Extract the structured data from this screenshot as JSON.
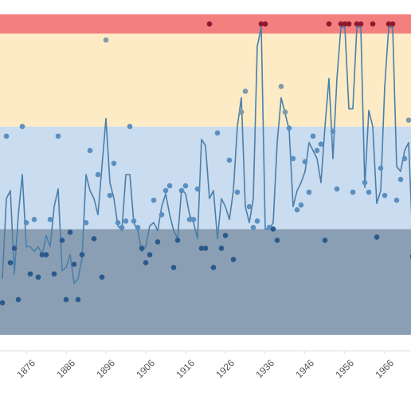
{
  "chart_data": {
    "type": "line-scatter",
    "xlim": [
      1869.4,
      1972.6
    ],
    "ylim": [
      0,
      100
    ],
    "xticks": [
      1876,
      1886,
      1896,
      1906,
      1916,
      1926,
      1936,
      1946,
      1956,
      1966
    ],
    "bands": [
      {
        "from": 0,
        "to": 33,
        "color": "#8a9fb3",
        "point_color": "#2a5a8c"
      },
      {
        "from": 33,
        "to": 65,
        "color": "#c9dcf0",
        "point_color": "#5b8fbf"
      },
      {
        "from": 65,
        "to": 94,
        "color": "#fcebc4",
        "point_color": "#7f9aa8"
      },
      {
        "from": 94,
        "to": 100,
        "color": "#f47f7f",
        "point_color": "#8b1a2e"
      }
    ],
    "x": [
      1870,
      1871,
      1872,
      1873,
      1874,
      1875,
      1876,
      1877,
      1878,
      1879,
      1880,
      1881,
      1882,
      1883,
      1884,
      1885,
      1886,
      1887,
      1888,
      1889,
      1890,
      1891,
      1892,
      1893,
      1894,
      1895,
      1896,
      1897,
      1898,
      1899,
      1900,
      1901,
      1902,
      1903,
      1904,
      1905,
      1906,
      1907,
      1908,
      1909,
      1910,
      1911,
      1912,
      1913,
      1914,
      1915,
      1916,
      1917,
      1918,
      1919,
      1920,
      1921,
      1922,
      1923,
      1924,
      1925,
      1926,
      1927,
      1928,
      1929,
      1930,
      1931,
      1932,
      1933,
      1934,
      1935,
      1936,
      1937,
      1938,
      1939,
      1940,
      1941,
      1942,
      1943,
      1944,
      1945,
      1946,
      1947,
      1948,
      1949,
      1950,
      1951,
      1952,
      1953,
      1954,
      1955,
      1956,
      1957,
      1958,
      1959,
      1960,
      1961,
      1962,
      1963,
      1964,
      1965,
      1966,
      1967,
      1968,
      1969,
      1970,
      1971,
      1972,
      1973
    ],
    "line": {
      "color": "#4a7fab",
      "values": [
        17.5,
        42.5,
        45,
        19,
        37.5,
        50,
        27.5,
        27.5,
        26,
        27.5,
        25,
        31,
        27.5,
        40,
        45.5,
        20,
        21,
        25,
        16,
        17.5,
        24,
        50,
        45,
        42.5,
        37.5,
        52.5,
        67.5,
        47.5,
        42.5,
        34,
        32.5,
        50,
        50,
        35,
        32.5,
        26,
        27.5,
        34,
        35,
        32.5,
        40,
        44,
        37.5,
        32.5,
        30,
        45.5,
        44,
        37.5,
        35,
        30,
        61,
        59,
        42.5,
        45,
        30,
        42.5,
        40,
        36,
        45,
        65,
        74,
        40,
        35,
        42.5,
        90,
        96,
        33,
        33,
        35,
        60,
        74,
        69,
        64,
        40,
        45,
        47.5,
        51,
        60,
        57.5,
        55,
        47.5,
        65,
        80,
        55,
        80,
        96,
        96,
        70.5,
        70.5,
        96,
        96,
        46,
        70,
        65,
        41,
        45,
        77.5,
        96,
        96,
        52.5,
        51,
        57.5,
        60,
        30
      ]
    },
    "points": {
      "values": [
        10,
        62,
        22.5,
        27,
        11,
        65,
        35,
        19,
        36,
        18,
        25,
        25,
        36,
        19,
        62,
        29.5,
        11,
        32,
        22,
        11,
        25,
        35,
        57.5,
        30,
        50,
        18,
        92,
        43.5,
        53.5,
        35,
        33.5,
        35.5,
        65,
        35.5,
        33.5,
        27,
        22.5,
        25,
        42,
        29,
        37.5,
        45,
        46.5,
        21,
        29.5,
        45,
        46.5,
        36,
        36,
        45.5,
        27,
        27,
        97,
        21,
        63,
        27,
        31,
        54.5,
        23.5,
        44.5,
        69.5,
        76,
        40,
        33.5,
        35.5,
        97,
        97,
        33.5,
        33,
        29.5,
        77.5,
        69.5,
        64.5,
        55,
        39,
        40.5,
        54,
        44.5,
        62,
        57.5,
        59.5,
        29.5,
        97,
        63.5,
        45.5,
        97,
        97,
        97,
        44.5,
        97,
        97,
        47.5,
        44.5,
        97,
        30.5,
        52,
        43.5,
        97,
        97,
        42,
        48.5,
        55,
        67,
        24.5
      ]
    }
  }
}
